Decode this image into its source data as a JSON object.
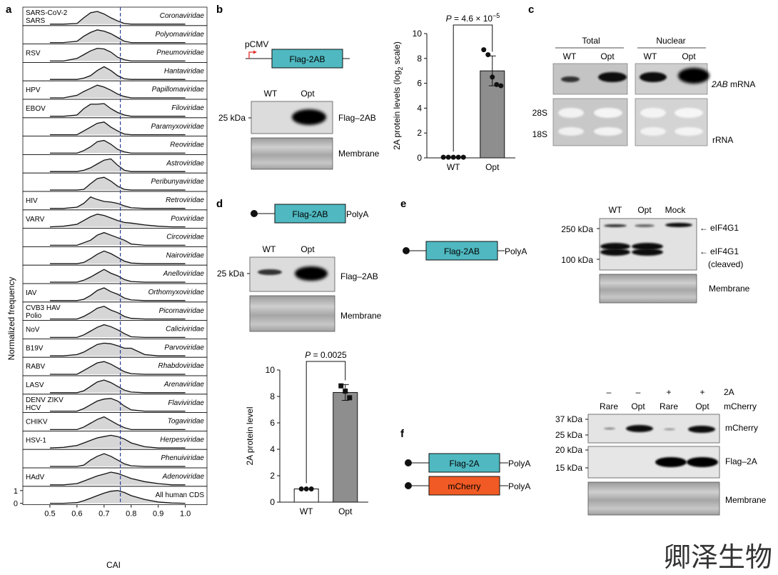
{
  "panel_letters": {
    "a": "a",
    "b": "b",
    "c": "c",
    "d": "d",
    "e": "e",
    "f": "f"
  },
  "watermark": "卿泽生物",
  "panel_a": {
    "ylabel": "Normalized frequency",
    "xlabel": "CAI",
    "xticks": [
      "0.5",
      "0.6",
      "0.7",
      "0.8",
      "0.9",
      "1.0"
    ],
    "yticks": [
      "1",
      "0"
    ],
    "rows": [
      {
        "left": [
          "SARS-CoV-2",
          "SARS"
        ],
        "family": "Coronaviridae"
      },
      {
        "left": [],
        "family": "Polyomaviridae"
      },
      {
        "left": [
          "RSV"
        ],
        "family": "Pneumoviridae"
      },
      {
        "left": [],
        "family": "Hantaviridae"
      },
      {
        "left": [
          "HPV"
        ],
        "family": "Papillomaviridae"
      },
      {
        "left": [
          "EBOV"
        ],
        "family": "Filoviridae"
      },
      {
        "left": [],
        "family": "Paramyxoviridae"
      },
      {
        "left": [],
        "family": "Reoviridae"
      },
      {
        "left": [],
        "family": "Astroviridae"
      },
      {
        "left": [],
        "family": "Peribunyaviridae"
      },
      {
        "left": [
          "HIV"
        ],
        "family": "Retroviridae"
      },
      {
        "left": [
          "VARV"
        ],
        "family": "Poxviridae"
      },
      {
        "left": [],
        "family": "Circoviridae"
      },
      {
        "left": [],
        "family": "Nairoviridae"
      },
      {
        "left": [],
        "family": "Anelloviridae"
      },
      {
        "left": [
          "IAV"
        ],
        "family": "Orthomyxoviridae"
      },
      {
        "left": [
          "CVB3 HAV",
          "Polio"
        ],
        "family": "Picornaviridae"
      },
      {
        "left": [
          "NoV"
        ],
        "family": "Caliciviridae"
      },
      {
        "left": [
          "B19V"
        ],
        "family": "Parvoviridae"
      },
      {
        "left": [
          "RABV"
        ],
        "family": "Rhabdoviridae"
      },
      {
        "left": [
          "LASV"
        ],
        "family": "Arenaviridae"
      },
      {
        "left": [
          "DENV ZIKV",
          "HCV"
        ],
        "family": "Flaviviridae"
      },
      {
        "left": [
          "CHIKV"
        ],
        "family": "Togaviridae"
      },
      {
        "left": [
          "HSV-1"
        ],
        "family": "Herpesviridae"
      },
      {
        "left": [],
        "family": "Phenuiviridae"
      },
      {
        "left": [
          "HAdV"
        ],
        "family": "Adenoviridae"
      },
      {
        "left": [],
        "family": "All human CDS",
        "upright": true
      }
    ]
  },
  "panel_b": {
    "promoter": "pCMV",
    "construct": "Flag-2AB",
    "lanes": [
      "WT",
      "Opt"
    ],
    "marker": "25 kDa",
    "blot1": "Flag–2AB",
    "blot2": "Membrane",
    "chart": {
      "ylabel": "2A protein levels (log",
      "ylabel_sub": "2",
      "ylabel_end": " scale)",
      "yticks": [
        "0",
        "2",
        "4",
        "6",
        "8",
        "10"
      ],
      "cats": [
        "WT",
        "Opt"
      ],
      "p_prefix": "P",
      "p_text": " = 4.6 × 10",
      "p_exp": "−5"
    }
  },
  "panel_c": {
    "group1": "Total",
    "group2": "Nuclear",
    "lanes": [
      "WT",
      "Opt",
      "WT",
      "Opt"
    ],
    "label_mrna": "2AB",
    "label_mrna_rest": " mRNA",
    "m28": "28S",
    "m18": "18S",
    "rrna": "rRNA"
  },
  "panel_d": {
    "construct": "Flag-2AB",
    "polya": "PolyA",
    "lanes": [
      "WT",
      "Opt"
    ],
    "marker": "25 kDa",
    "blot1": "Flag–2AB",
    "blot2": "Membrane",
    "chart": {
      "ylabel": "2A protein level",
      "yticks": [
        "0",
        "2",
        "4",
        "6",
        "8",
        "10"
      ],
      "cats": [
        "WT",
        "Opt"
      ],
      "p_prefix": "P",
      "p_text": " = 0.0025"
    }
  },
  "panel_e": {
    "construct": "Flag-2AB",
    "polya": "PolyA",
    "lanes": [
      "WT",
      "Opt",
      "Mock"
    ],
    "m250": "250 kDa",
    "m100": "100 kDa",
    "band1": "eIF4G1",
    "band2": "eIF4G1",
    "band2b": "(cleaved)",
    "membrane": "Membrane",
    "arrow": "←"
  },
  "panel_f": {
    "construct1": "Flag-2A",
    "construct2": "mCherry",
    "polya": "PolyA",
    "row_2a": [
      "–",
      "–",
      "+",
      "+"
    ],
    "row_2a_label": "2A",
    "lanes": [
      "Rare",
      "Opt",
      "Rare",
      "Opt"
    ],
    "lanes_label": "mCherry",
    "m37": "37 kDa",
    "m25": "25 kDa",
    "m20": "20 kDa",
    "m15": "15 kDa",
    "blot1": "mCherry",
    "blot2": "Flag–2A",
    "blot3": "Membrane"
  },
  "chart_data": [
    {
      "type": "area",
      "title": "",
      "xlabel": "CAI",
      "ylabel": "Normalized frequency",
      "xlim": [
        0.4,
        1.08
      ],
      "ylim": [
        0,
        1
      ],
      "reference_line": 0.76,
      "x": [
        0.5,
        0.55,
        0.6,
        0.625,
        0.65,
        0.675,
        0.7,
        0.725,
        0.75,
        0.775,
        0.8,
        0.85,
        0.9,
        0.95,
        1.0
      ],
      "series": [
        {
          "values": [
            0,
            0,
            0.05,
            0.5,
            0.9,
            1.0,
            0.8,
            0.5,
            0.25,
            0.05,
            0,
            0,
            0,
            0,
            0
          ]
        },
        {
          "values": [
            0,
            0,
            0.1,
            0.5,
            0.8,
            1.0,
            0.9,
            0.7,
            0.4,
            0.1,
            0,
            0,
            0,
            0,
            0
          ]
        },
        {
          "values": [
            0,
            0,
            0.2,
            0.5,
            0.8,
            1.0,
            0.95,
            0.7,
            0.3,
            0.1,
            0,
            0,
            0,
            0,
            0
          ]
        },
        {
          "values": [
            0,
            0,
            0,
            0.1,
            0.3,
            0.7,
            1.0,
            0.7,
            0.3,
            0.05,
            0,
            0,
            0,
            0,
            0
          ]
        },
        {
          "values": [
            0,
            0,
            0.2,
            0.5,
            0.75,
            1.0,
            0.85,
            0.6,
            0.3,
            0.1,
            0,
            0,
            0,
            0,
            0
          ]
        },
        {
          "values": [
            0,
            0,
            0.1,
            0.6,
            0.95,
            0.95,
            1.0,
            0.6,
            0.3,
            0.1,
            0,
            0,
            0,
            0,
            0
          ]
        },
        {
          "values": [
            0,
            0,
            0,
            0.3,
            0.6,
            0.9,
            1.0,
            0.6,
            0.3,
            0.05,
            0,
            0,
            0,
            0,
            0
          ]
        },
        {
          "values": [
            0,
            0,
            0,
            0.2,
            0.5,
            0.9,
            1.0,
            0.7,
            0.3,
            0.1,
            0,
            0,
            0,
            0,
            0
          ]
        },
        {
          "values": [
            0,
            0,
            0,
            0.1,
            0.3,
            0.6,
            0.9,
            1.0,
            0.5,
            0.1,
            0,
            0,
            0,
            0,
            0
          ]
        },
        {
          "values": [
            0,
            0,
            0,
            0.05,
            0.5,
            0.9,
            1.0,
            0.7,
            0.3,
            0.05,
            0,
            0,
            0,
            0,
            0
          ]
        },
        {
          "values": [
            0,
            0,
            0.1,
            0.4,
            0.9,
            0.7,
            0.55,
            0.5,
            0.4,
            0.2,
            0.05,
            0,
            0,
            0,
            0
          ]
        },
        {
          "values": [
            0,
            0.05,
            0.2,
            0.5,
            0.8,
            1.0,
            0.9,
            0.7,
            0.5,
            0.35,
            0.3,
            0.15,
            0.05,
            0,
            0
          ]
        },
        {
          "values": [
            0,
            0,
            0,
            0.2,
            0.4,
            0.8,
            1.0,
            0.8,
            0.6,
            0.4,
            0.1,
            0,
            0,
            0,
            0
          ]
        },
        {
          "values": [
            0,
            0,
            0,
            0.1,
            0.4,
            0.75,
            1.0,
            0.8,
            0.5,
            0.2,
            0.05,
            0,
            0,
            0,
            0
          ]
        },
        {
          "values": [
            0,
            0,
            0,
            0.15,
            0.4,
            0.7,
            1.0,
            0.7,
            0.5,
            0.2,
            0.05,
            0,
            0,
            0,
            0
          ]
        },
        {
          "values": [
            0,
            0,
            0,
            0.1,
            0.4,
            0.8,
            1.0,
            0.7,
            0.5,
            0.2,
            0.05,
            0,
            0,
            0,
            0
          ]
        },
        {
          "values": [
            0,
            0,
            0,
            0.2,
            0.5,
            0.85,
            1.0,
            0.7,
            0.5,
            0.2,
            0.05,
            0,
            0,
            0,
            0
          ]
        },
        {
          "values": [
            0,
            0,
            0,
            0.2,
            0.5,
            0.8,
            1.0,
            0.85,
            0.6,
            0.3,
            0.05,
            0,
            0,
            0,
            0
          ]
        },
        {
          "values": [
            0,
            0,
            0.1,
            0.3,
            0.6,
            0.9,
            1.0,
            0.95,
            0.8,
            0.6,
            0.6,
            0.1,
            0,
            0,
            0
          ]
        },
        {
          "values": [
            0,
            0,
            0,
            0.3,
            0.6,
            0.9,
            1.0,
            0.8,
            0.5,
            0.2,
            0.05,
            0,
            0,
            0,
            0
          ]
        },
        {
          "values": [
            0,
            0,
            0,
            0.15,
            0.5,
            0.85,
            1.0,
            0.8,
            0.5,
            0.2,
            0.05,
            0,
            0,
            0,
            0
          ]
        },
        {
          "values": [
            0,
            0,
            0,
            0.2,
            0.5,
            0.8,
            0.95,
            1.0,
            0.8,
            0.4,
            0.1,
            0,
            0,
            0,
            0
          ]
        },
        {
          "values": [
            0,
            0,
            0,
            0.2,
            0.5,
            0.8,
            1.0,
            0.7,
            0.4,
            0.15,
            0,
            0,
            0,
            0,
            0
          ]
        },
        {
          "values": [
            0,
            0.05,
            0.2,
            0.4,
            0.6,
            0.8,
            0.9,
            1.0,
            0.9,
            0.7,
            0.4,
            0.1,
            0,
            0,
            0
          ]
        },
        {
          "values": [
            0,
            0,
            0,
            0.1,
            0.5,
            0.8,
            1.0,
            0.8,
            0.5,
            0.2,
            0.05,
            0,
            0,
            0,
            0
          ]
        },
        {
          "values": [
            0,
            0,
            0.1,
            0.3,
            0.5,
            0.7,
            0.85,
            1.0,
            0.9,
            0.7,
            0.5,
            0.25,
            0.1,
            0,
            0
          ]
        },
        {
          "values": [
            0,
            0,
            0.05,
            0.2,
            0.4,
            0.6,
            0.8,
            0.95,
            1.0,
            0.85,
            0.6,
            0.3,
            0.1,
            0.02,
            0
          ]
        }
      ]
    },
    {
      "type": "bar",
      "title": "",
      "categories": [
        "WT",
        "Opt"
      ],
      "values": [
        0.05,
        7.0
      ],
      "errors": [
        0.05,
        1.2
      ],
      "points": [
        [
          0.05,
          0.05,
          0.05,
          0.05,
          0.05
        ],
        [
          8.7,
          8.3,
          6.5,
          5.9,
          5.8
        ]
      ],
      "ylabel": "2A protein levels (log2 scale)",
      "ylim": [
        0,
        10
      ],
      "annotation": "P = 4.6 × 10−5"
    },
    {
      "type": "bar",
      "title": "",
      "categories": [
        "WT",
        "Opt"
      ],
      "values": [
        1.0,
        8.3
      ],
      "errors": [
        0.1,
        0.6
      ],
      "points": [
        [
          1.0,
          1.0,
          1.0
        ],
        [
          8.8,
          8.4,
          7.9
        ]
      ],
      "ylabel": "2A protein level",
      "ylim": [
        0,
        10
      ],
      "annotation": "P = 0.0025"
    }
  ]
}
